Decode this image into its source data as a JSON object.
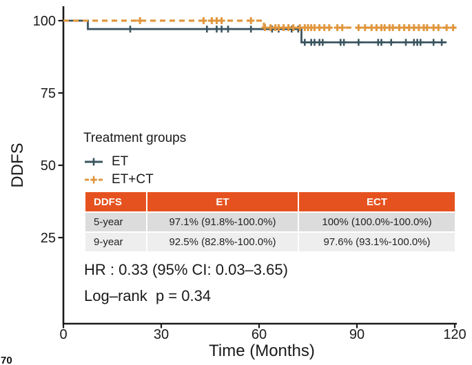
{
  "figure": {
    "corner_fragment": "70"
  },
  "colors": {
    "et_line": "#3b5560",
    "etct_line": "#e0973f",
    "axis": "#1a1a1a",
    "text": "#1a1a1a",
    "table_header_bg": "#e6521f",
    "table_header_text": "#ffffff",
    "table_row1_bg": "#dcdcdc",
    "table_row2_bg": "#eeeeee"
  },
  "chart_data": {
    "type": "line",
    "variant": "kaplan_meier_step_survival",
    "title": "",
    "xlabel": "Time (Months)",
    "ylabel": "DDFS",
    "xlim": [
      0,
      120
    ],
    "ylim": [
      0,
      100
    ],
    "xticks": [
      0,
      30,
      60,
      90,
      120
    ],
    "yticks": [
      100,
      75,
      50,
      25
    ],
    "grid": false,
    "legend_position": "inside-left-middle",
    "legend_title": "Treatment groups",
    "series": [
      {
        "name": "ET",
        "color": "#3b5560",
        "line_style": "solid",
        "steps": [
          [
            0,
            100
          ],
          [
            7.5,
            100
          ],
          [
            7.5,
            97.1
          ],
          [
            73,
            97.1
          ],
          [
            73,
            92.5
          ],
          [
            117.5,
            92.5
          ]
        ],
        "censor_marks": [
          [
            20.5,
            97.1
          ],
          [
            44,
            97.1
          ],
          [
            47,
            97.1
          ],
          [
            48.5,
            97.1
          ],
          [
            50.5,
            97.1
          ],
          [
            57.5,
            97.1
          ],
          [
            64,
            97.1
          ],
          [
            66,
            97.1
          ],
          [
            70,
            97.1
          ],
          [
            72,
            97.1
          ],
          [
            74,
            92.5
          ],
          [
            76,
            92.5
          ],
          [
            77,
            92.5
          ],
          [
            78.5,
            92.5
          ],
          [
            79.5,
            92.5
          ],
          [
            85,
            92.5
          ],
          [
            86,
            92.5
          ],
          [
            90.5,
            92.5
          ],
          [
            96.5,
            92.5
          ],
          [
            97.5,
            92.5
          ],
          [
            100.5,
            92.5
          ],
          [
            105,
            92.5
          ],
          [
            107.5,
            92.5
          ],
          [
            108.5,
            92.5
          ],
          [
            109.5,
            92.5
          ],
          [
            113.5,
            92.5
          ],
          [
            116,
            92.5
          ]
        ]
      },
      {
        "name": "ET+CT",
        "color": "#e0973f",
        "line_style": "dashed",
        "steps": [
          [
            0,
            100
          ],
          [
            61.5,
            100
          ],
          [
            61.5,
            97.6
          ],
          [
            120.3,
            97.6
          ]
        ],
        "censor_marks": [
          [
            23.5,
            100
          ],
          [
            43,
            100
          ],
          [
            45.5,
            100
          ],
          [
            47,
            100
          ],
          [
            48.5,
            100
          ],
          [
            57.5,
            100
          ],
          [
            61.8,
            97.6
          ],
          [
            63.5,
            97.6
          ],
          [
            65,
            97.6
          ],
          [
            66,
            97.6
          ],
          [
            67.5,
            97.6
          ],
          [
            69,
            97.6
          ],
          [
            70.5,
            97.6
          ],
          [
            72.5,
            97.6
          ],
          [
            74,
            97.6
          ],
          [
            75,
            97.6
          ],
          [
            76,
            97.6
          ],
          [
            77,
            97.6
          ],
          [
            78.5,
            97.6
          ],
          [
            80,
            97.6
          ],
          [
            81.5,
            97.6
          ],
          [
            84,
            97.6
          ],
          [
            85.5,
            97.6
          ],
          [
            90.5,
            97.6
          ],
          [
            92.5,
            97.6
          ],
          [
            94.5,
            97.6
          ],
          [
            96,
            97.6
          ],
          [
            97.5,
            97.6
          ],
          [
            98.5,
            97.6
          ],
          [
            100,
            97.6
          ],
          [
            101,
            97.6
          ],
          [
            103,
            97.6
          ],
          [
            104.5,
            97.6
          ],
          [
            106,
            97.6
          ],
          [
            107.5,
            97.6
          ],
          [
            109,
            97.6
          ],
          [
            110.5,
            97.6
          ],
          [
            111.5,
            97.6
          ],
          [
            113.5,
            97.6
          ],
          [
            115,
            97.6
          ],
          [
            117.5,
            97.6
          ],
          [
            119.5,
            97.6
          ]
        ]
      }
    ]
  },
  "stats_table": {
    "columns": [
      "DDFS",
      "ET",
      "ECT"
    ],
    "rows": [
      {
        "label": "5-year",
        "et": "97.1% (91.8%-100.0%)",
        "ect": "100% (100.0%-100.0%)"
      },
      {
        "label": "9-year",
        "et": "92.5% (82.8%-100.0%)",
        "ect": "97.6% (93.1%-100.0%)"
      }
    ]
  },
  "annotations": {
    "hazard_ratio": "HR : 0.33 (95% CI: 0.03–3.65)",
    "log_rank": "Log–rank  p = 0.34"
  }
}
